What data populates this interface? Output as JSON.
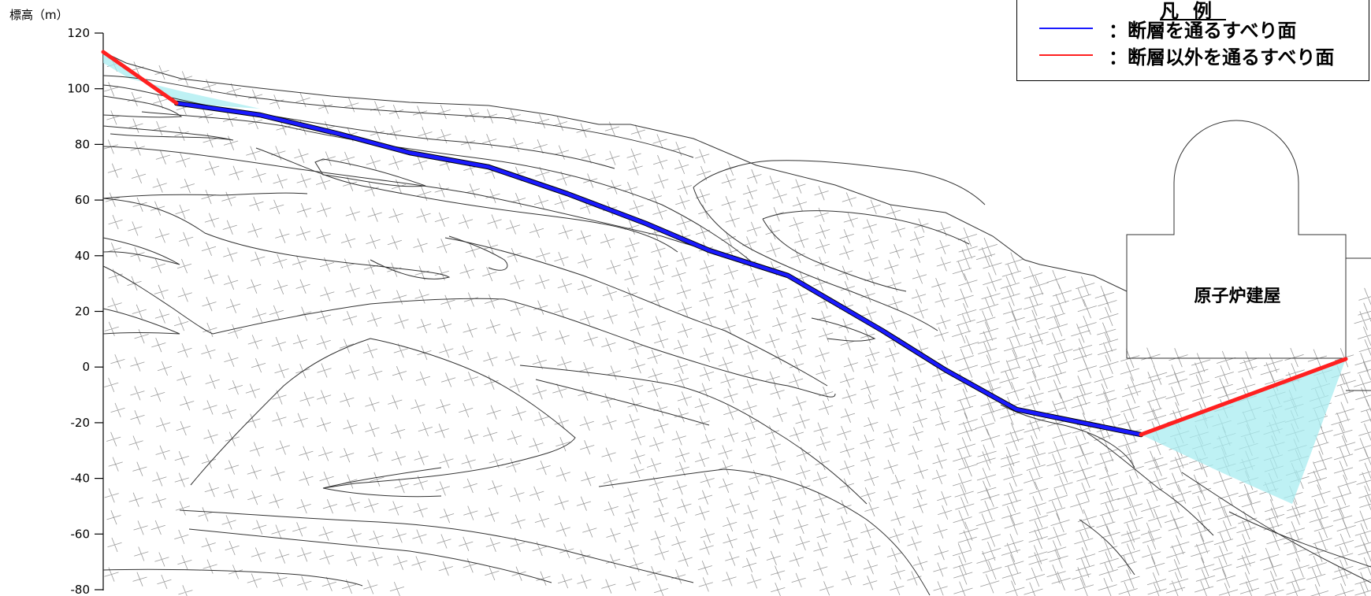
{
  "axis": {
    "title": "標高（m）",
    "ticks": [
      "120",
      "100",
      "80",
      "60",
      "40",
      "20",
      "0",
      "-20",
      "-40",
      "-60",
      "-80"
    ],
    "range": [
      -80,
      120
    ]
  },
  "legend": {
    "title": "凡例",
    "items": [
      {
        "label": "：断層を通るすべり面",
        "color": "#1a1aff"
      },
      {
        "label": "：断層以外を通るすべり面",
        "color": "#ff2020"
      }
    ]
  },
  "building": {
    "label": "原子炉建屋"
  },
  "colors": {
    "fault_slip": "#1a1aff",
    "non_fault_slip": "#ff2020",
    "slide_mass": "#a8ecf0",
    "geology": "#333333",
    "cracks": "#9a9a9a"
  }
}
